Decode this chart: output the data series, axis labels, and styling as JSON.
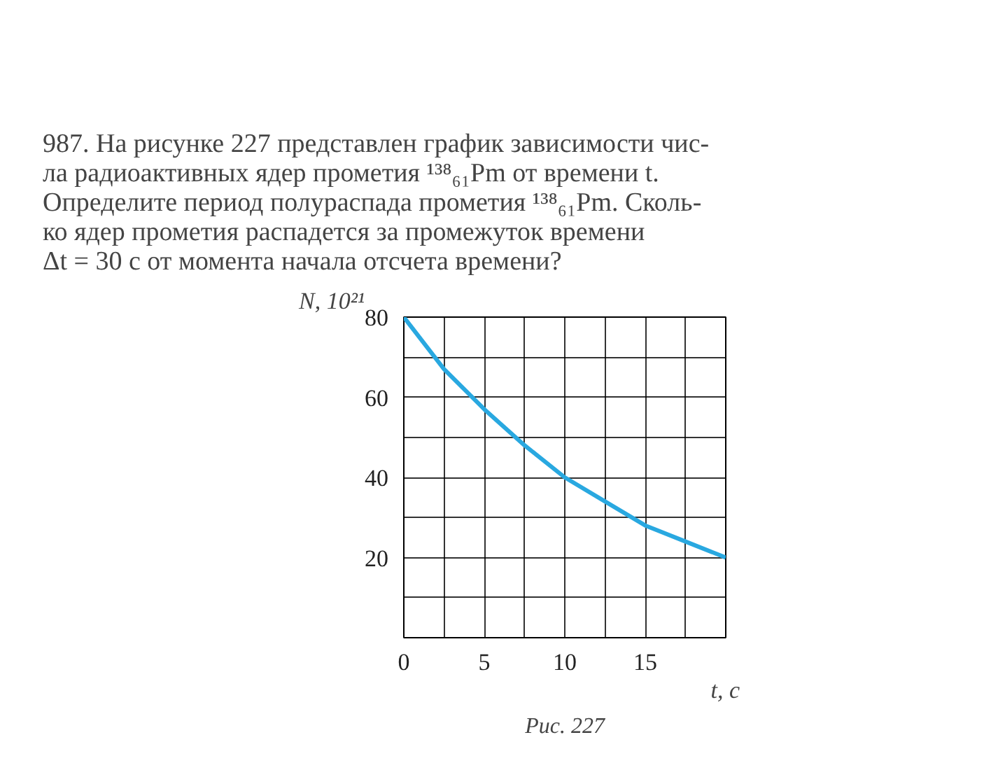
{
  "chart_data": {
    "type": "line",
    "title": "987. На рисунке 227 представлен график зависимости чис-\nла радиоактивных ядер прометия ¹³⁸₆₁Pm от времени t.\nОпределите период полураспада прометия ¹³⁸₆₁Pm. Сколь-\nко ядер прометия распадется за промежуток времени\nΔt = 30 с от момента начала отсчета времени?",
    "xlabel": "t, c",
    "ylabel": "N, 10²¹",
    "annotations": [
      "Рис. 227"
    ],
    "x": [
      0,
      2.5,
      5,
      7.5,
      10,
      12.5,
      15,
      17.5,
      20
    ],
    "series": [
      {
        "color": "#29a8e0",
        "values": [
          80,
          67,
          57,
          48,
          40,
          34,
          28,
          24,
          20
        ]
      }
    ],
    "xlim": [
      0,
      20
    ],
    "ylim": [
      0,
      80
    ],
    "xticks": [
      0,
      {
        "value": 2.5,
        "label": null
      },
      5,
      {
        "value": 7.5,
        "label": null
      },
      10,
      {
        "value": 12.5,
        "label": null
      },
      15,
      {
        "value": 17.5,
        "label": null
      },
      {
        "value": 20,
        "label": null
      }
    ],
    "yticks": [
      {
        "value": 0,
        "label": null
      },
      {
        "value": 10,
        "label": null
      },
      20,
      {
        "value": 30,
        "label": null
      },
      40,
      {
        "value": 50,
        "label": null
      },
      60,
      {
        "value": 70,
        "label": null
      },
      80
    ],
    "grid": true,
    "marker": "none",
    "line_style": "solid"
  }
}
